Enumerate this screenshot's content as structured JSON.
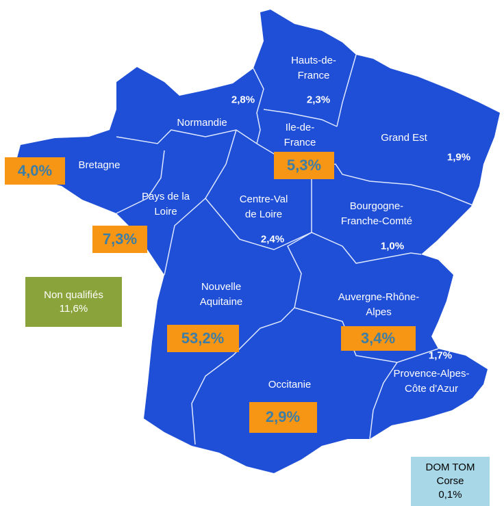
{
  "regions": [
    {
      "name": [
        "Hauts-de-",
        "France"
      ],
      "value": "2,3%",
      "boxed": false
    },
    {
      "name": [
        "Normandie"
      ],
      "value": "2,8%",
      "boxed": false
    },
    {
      "name": [
        "Ile-de-",
        "France"
      ],
      "value": "5,3%",
      "boxed": true
    },
    {
      "name": [
        "Grand Est"
      ],
      "value": "1,9%",
      "boxed": false
    },
    {
      "name": [
        "Bretagne"
      ],
      "value": "4,0%",
      "boxed": true
    },
    {
      "name": [
        "Pays de la",
        "Loire"
      ],
      "value": "7,3%",
      "boxed": true
    },
    {
      "name": [
        "Centre-Val",
        "de Loire"
      ],
      "value": "2,4%",
      "boxed": false
    },
    {
      "name": [
        "Bourgogne-",
        "Franche-Comté"
      ],
      "value": "1,0%",
      "boxed": false
    },
    {
      "name": [
        "Nouvelle",
        "Aquitaine"
      ],
      "value": "53,2%",
      "boxed": true
    },
    {
      "name": [
        "Auvergne-Rhône-",
        "Alpes"
      ],
      "value": "3,4%",
      "boxed": true
    },
    {
      "name": [
        "Occitanie"
      ],
      "value": "2,9%",
      "boxed": true
    },
    {
      "name": [
        "Provence-Alpes-",
        "Côte d'Azur"
      ],
      "value": "1,7%",
      "boxed": false
    }
  ],
  "unqualified": {
    "label": "Non qualifiés",
    "value": "11,6%"
  },
  "overseas": {
    "label": [
      "DOM TOM",
      "Corse"
    ],
    "value": "0,1%"
  }
}
